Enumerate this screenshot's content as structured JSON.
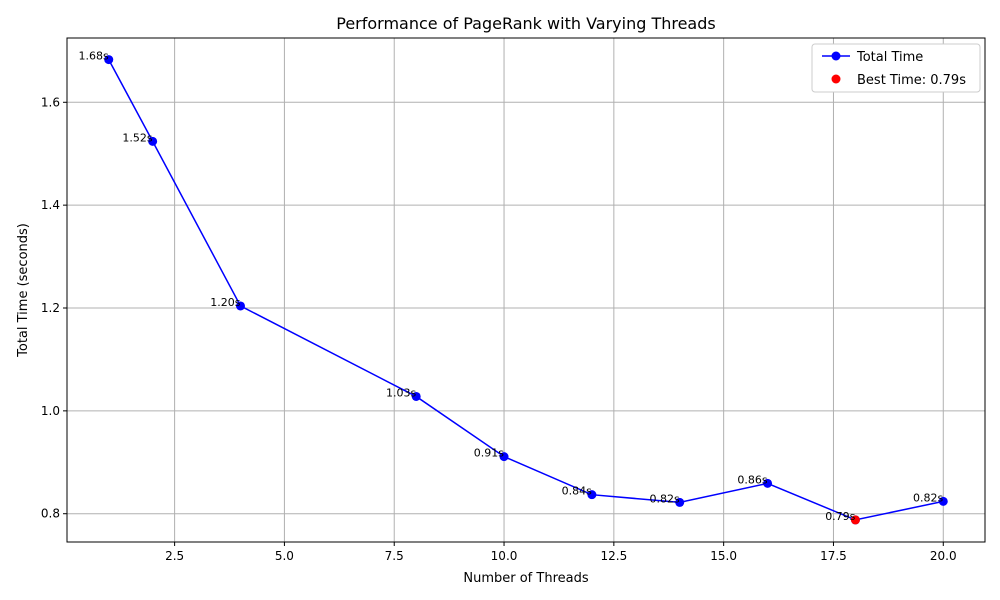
{
  "chart_data": {
    "type": "line",
    "title": "Performance of PageRank with Varying Threads",
    "xlabel": "Number of Threads",
    "ylabel": "Total Time (seconds)",
    "xlim": [
      0.05,
      20.95
    ],
    "ylim": [
      0.745,
      1.725
    ],
    "x_ticks": [
      2.5,
      5.0,
      7.5,
      10.0,
      12.5,
      15.0,
      17.5,
      20.0
    ],
    "x_tick_labels": [
      "2.5",
      "5.0",
      "7.5",
      "10.0",
      "12.5",
      "15.0",
      "17.5",
      "20.0"
    ],
    "y_ticks": [
      0.8,
      1.0,
      1.2,
      1.4,
      1.6
    ],
    "y_tick_labels": [
      "0.8",
      "1.0",
      "1.2",
      "1.4",
      "1.6"
    ],
    "grid": true,
    "legend_position": "top-right",
    "series": [
      {
        "name": "Total Time",
        "color": "#0000ff",
        "marker": "circle",
        "x": [
          1,
          2,
          4,
          8,
          10,
          12,
          14,
          16,
          18,
          20
        ],
        "y": [
          1.683,
          1.524,
          1.204,
          1.028,
          0.911,
          0.837,
          0.822,
          0.859,
          0.788,
          0.824
        ],
        "labels": [
          "1.68s",
          "1.52s",
          "1.20s",
          "1.03s",
          "0.91s",
          "0.84s",
          "0.82s",
          "0.86s",
          "0.79s",
          "0.82s"
        ]
      }
    ],
    "highlight": {
      "name": "Best Time: 0.79s",
      "color": "#ff0000",
      "x": 18,
      "y": 0.788
    }
  }
}
